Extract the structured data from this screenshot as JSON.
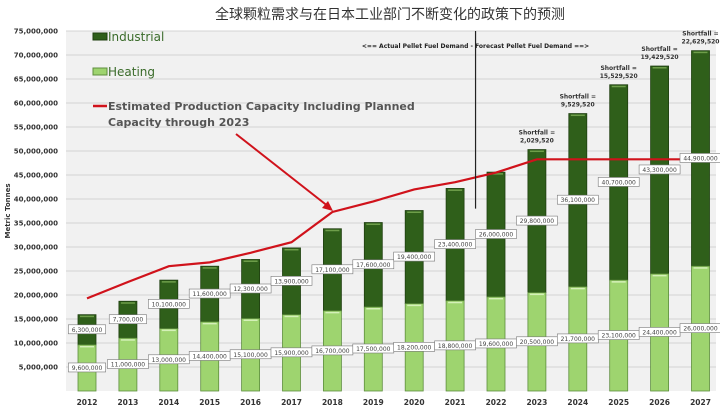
{
  "chart_data": {
    "type": "bar",
    "stacked": true,
    "title": "全球颗粒需求与在日本工业部门不断变化的政策下的预测",
    "ylabel": "Metric Tonnes",
    "ylim": [
      0,
      75000000
    ],
    "yticks": [
      5000000,
      10000000,
      15000000,
      20000000,
      25000000,
      30000000,
      35000000,
      40000000,
      45000000,
      50000000,
      55000000,
      60000000,
      65000000,
      70000000,
      75000000
    ],
    "ytick_labels": [
      "5,000,000",
      "10,000,000",
      "15,000,000",
      "20,000,000",
      "25,000,000",
      "30,000,000",
      "35,000,000",
      "40,000,000",
      "45,000,000",
      "50,000,000",
      "55,000,000",
      "60,000,000",
      "65,000,000",
      "70,000,000",
      "75,000,000"
    ],
    "grid": true,
    "legend_position": "top-left",
    "categories": [
      "2012",
      "2013",
      "2014",
      "2015",
      "2016",
      "2017",
      "2018",
      "2019",
      "2020",
      "2021",
      "2022",
      "2023",
      "2024",
      "2025",
      "2026",
      "2027"
    ],
    "series": [
      {
        "name": "Heating",
        "color": "#9ed46f",
        "values": [
          9600000,
          11000000,
          13000000,
          14400000,
          15100000,
          15900000,
          16700000,
          17500000,
          18200000,
          18800000,
          19600000,
          20500000,
          21700000,
          23100000,
          24400000,
          26000000
        ],
        "labels": [
          "9,600,000",
          "11,000,000",
          "13,000,000",
          "14,400,000",
          "15,100,000",
          "15,900,000",
          "16,700,000",
          "17,500,000",
          "18,200,000",
          "18,800,000",
          "19,600,000",
          "20,500,000",
          "21,700,000",
          "23,100,000",
          "24,400,000",
          "26,000,000"
        ]
      },
      {
        "name": "Industrial",
        "color": "#2f5f1a",
        "values": [
          6300000,
          7700000,
          10100000,
          11600000,
          12300000,
          13900000,
          17100000,
          17600000,
          19400000,
          23400000,
          26000000,
          29800000,
          36100000,
          40700000,
          43300000,
          44900000
        ],
        "labels": [
          "6,300,000",
          "7,700,000",
          "10,100,000",
          "11,600,000",
          "12,300,000",
          "13,900,000",
          "17,100,000",
          "17,600,000",
          "19,400,000",
          "23,400,000",
          "26,000,000",
          "29,800,000",
          "36,100,000",
          "40,700,000",
          "43,300,000",
          "44,900,000"
        ]
      },
      {
        "name": "Estimated Production Capacity Including Planned Capacity through 2023",
        "type": "line",
        "color": "#d0121b",
        "values": [
          19300000,
          22700000,
          26000000,
          26800000,
          28800000,
          31000000,
          37300000,
          39500000,
          42000000,
          43500000,
          45500000,
          48270480,
          48270480,
          48270480,
          48270480,
          48270480
        ]
      }
    ],
    "legend": [
      "Industrial",
      "Heating",
      "Estimated Production Capacity Including Planned",
      "Capacity through 2023"
    ],
    "annotations": {
      "divider_text": "<== Actual Pellet Fuel Demand - Forecast Pellet Fuel Demand ==>",
      "divider_between": [
        "2021",
        "2022"
      ],
      "shortfalls": [
        {
          "year": "2023",
          "label": "Shortfall =",
          "value": "2,029,520"
        },
        {
          "year": "2024",
          "label": "Shortfall =",
          "value": "9,529,520"
        },
        {
          "year": "2025",
          "label": "Shortfall =",
          "value": "15,529,520"
        },
        {
          "year": "2026",
          "label": "Shortfall =",
          "value": "19,429,520"
        },
        {
          "year": "2027",
          "label": "Shortfall =",
          "value": "22,629,520"
        }
      ]
    }
  }
}
